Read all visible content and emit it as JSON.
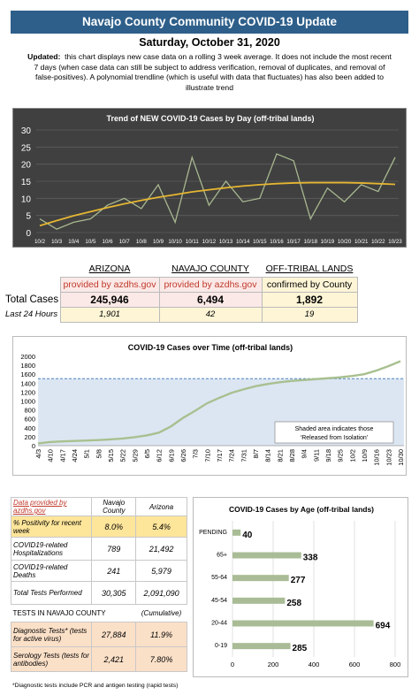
{
  "header": {
    "title": "Navajo County Community COVID-19 Update",
    "date": "Saturday, October 31, 2020",
    "updated_label": "Updated:",
    "updated_text": "this chart displays new case data on a rolling 3 week average.  It does not include the most recent 7 days (when case data can still be subject to address verification, removal of duplicates, and removal of false-positives).  A polynomial trendline (which is useful with data that fluctuates) has also been added to illustrate trend"
  },
  "chart_data": [
    {
      "type": "line",
      "title": "Trend of NEW COVID-19 Cases by Day (off-tribal lands)",
      "x": [
        "10/2",
        "10/3",
        "10/4",
        "10/5",
        "10/6",
        "10/7",
        "10/8",
        "10/9",
        "10/10",
        "10/11",
        "10/12",
        "10/13",
        "10/14",
        "10/15",
        "10/16",
        "10/17",
        "10/18",
        "10/19",
        "10/20",
        "10/21",
        "10/22",
        "10/23"
      ],
      "series": [
        {
          "values": [
            4,
            1,
            3,
            4,
            8,
            10,
            7,
            14,
            3,
            22,
            8,
            15,
            9,
            10,
            23,
            21,
            4,
            13,
            9,
            14,
            12,
            22
          ]
        },
        {
          "values": [
            2,
            3.5,
            4.9,
            6.1,
            7.3,
            8.4,
            9.4,
            10.3,
            11.1,
            11.9,
            12.5,
            13.1,
            13.6,
            14,
            14.3,
            14.5,
            14.6,
            14.6,
            14.6,
            14.5,
            14.3,
            14.1
          ]
        }
      ],
      "ylim": [
        0,
        30
      ],
      "yticks": [
        "0",
        "5",
        "10",
        "15",
        "20",
        "25",
        "30"
      ],
      "colors": {
        "background": "#404040",
        "line": "#a8b890",
        "trend": "#e5b632"
      }
    },
    {
      "type": "area",
      "title": "COVID-19 Cases over Time (off-tribal lands)",
      "x": [
        "4/3",
        "4/10",
        "4/17",
        "4/24",
        "5/1",
        "5/8",
        "5/15",
        "5/22",
        "5/29",
        "6/5",
        "6/12",
        "6/19",
        "6/26",
        "7/3",
        "7/10",
        "7/17",
        "7/24",
        "7/31",
        "8/7",
        "8/14",
        "8/21",
        "8/28",
        "9/4",
        "9/11",
        "9/18",
        "9/25",
        "10/2",
        "10/9",
        "10/16",
        "10/23",
        "10/30"
      ],
      "values": [
        50,
        80,
        95,
        105,
        115,
        125,
        140,
        160,
        190,
        230,
        290,
        430,
        620,
        780,
        950,
        1070,
        1180,
        1260,
        1330,
        1380,
        1420,
        1450,
        1470,
        1490,
        1510,
        1530,
        1560,
        1600,
        1680,
        1780,
        1892
      ],
      "released_level": 1500,
      "ylim": [
        0,
        2000
      ],
      "yticks": [
        "0",
        "200",
        "400",
        "600",
        "800",
        "1000",
        "1200",
        "1400",
        "1600",
        "1800",
        "2000"
      ],
      "annotation": "Shaded area indicates those ‘Released from Isolation’",
      "colors": {
        "line": "#a8c090",
        "shade": "#dce6f2",
        "dash": "#4f81bd"
      }
    },
    {
      "type": "bar",
      "title": "COVID-19 Cases by Age (off-tribal lands)",
      "categories": [
        "PENDING",
        "65+",
        "55-64",
        "45-54",
        "20-44",
        "0-19"
      ],
      "values": [
        40,
        338,
        277,
        258,
        694,
        285
      ],
      "xlim": [
        0,
        800
      ],
      "xticks": [
        "0",
        "200",
        "400",
        "600",
        "800"
      ],
      "colors": {
        "bar": "#a9bc96"
      }
    }
  ],
  "totals": {
    "col_az": "ARIZONA",
    "col_nc": "NAVAJO COUNTY",
    "col_ot": "OFF-TRIBAL LANDS",
    "src_az": "provided by azdhs.gov",
    "src_nc": "provided by azdhs.gov",
    "src_ot": "confirmed by County",
    "total_label": "Total Cases",
    "total_az": "245,946",
    "total_nc": "6,494",
    "total_ot": "1,892",
    "last24_label": "Last 24 Hours",
    "last24_az": "1,901",
    "last24_nc": "42",
    "last24_ot": "19"
  },
  "stats": {
    "source": "Data provided by azdhs.gov",
    "col_nc": "Navajo County",
    "col_az": "Arizona",
    "rows": [
      {
        "label": "% Positivity for recent week",
        "nc": "8.0%",
        "az": "5.4%"
      },
      {
        "label": "COVID19-related Hospitalizations",
        "nc": "789",
        "az": "21,492"
      },
      {
        "label": "COVID19-related Deaths",
        "nc": "241",
        "az": "5,979"
      },
      {
        "label": "Total Tests Performed",
        "nc": "30,305",
        "az": "2,091,090"
      }
    ],
    "tests_heading": "TESTS IN NAVAJO COUNTY",
    "tests_cumulative": "(Cumulative)",
    "diag_label": "Diagnostic Tests* (tests for active virus)",
    "diag_nc": "27,884",
    "diag_pct": "11.9%",
    "sero_label": "Serology Tests (tests for antibodies)",
    "sero_nc": "2,421",
    "sero_pct": "7.80%"
  },
  "footnote": "*Diagnostic tests include PCR and antigen testing (rapid tests)"
}
